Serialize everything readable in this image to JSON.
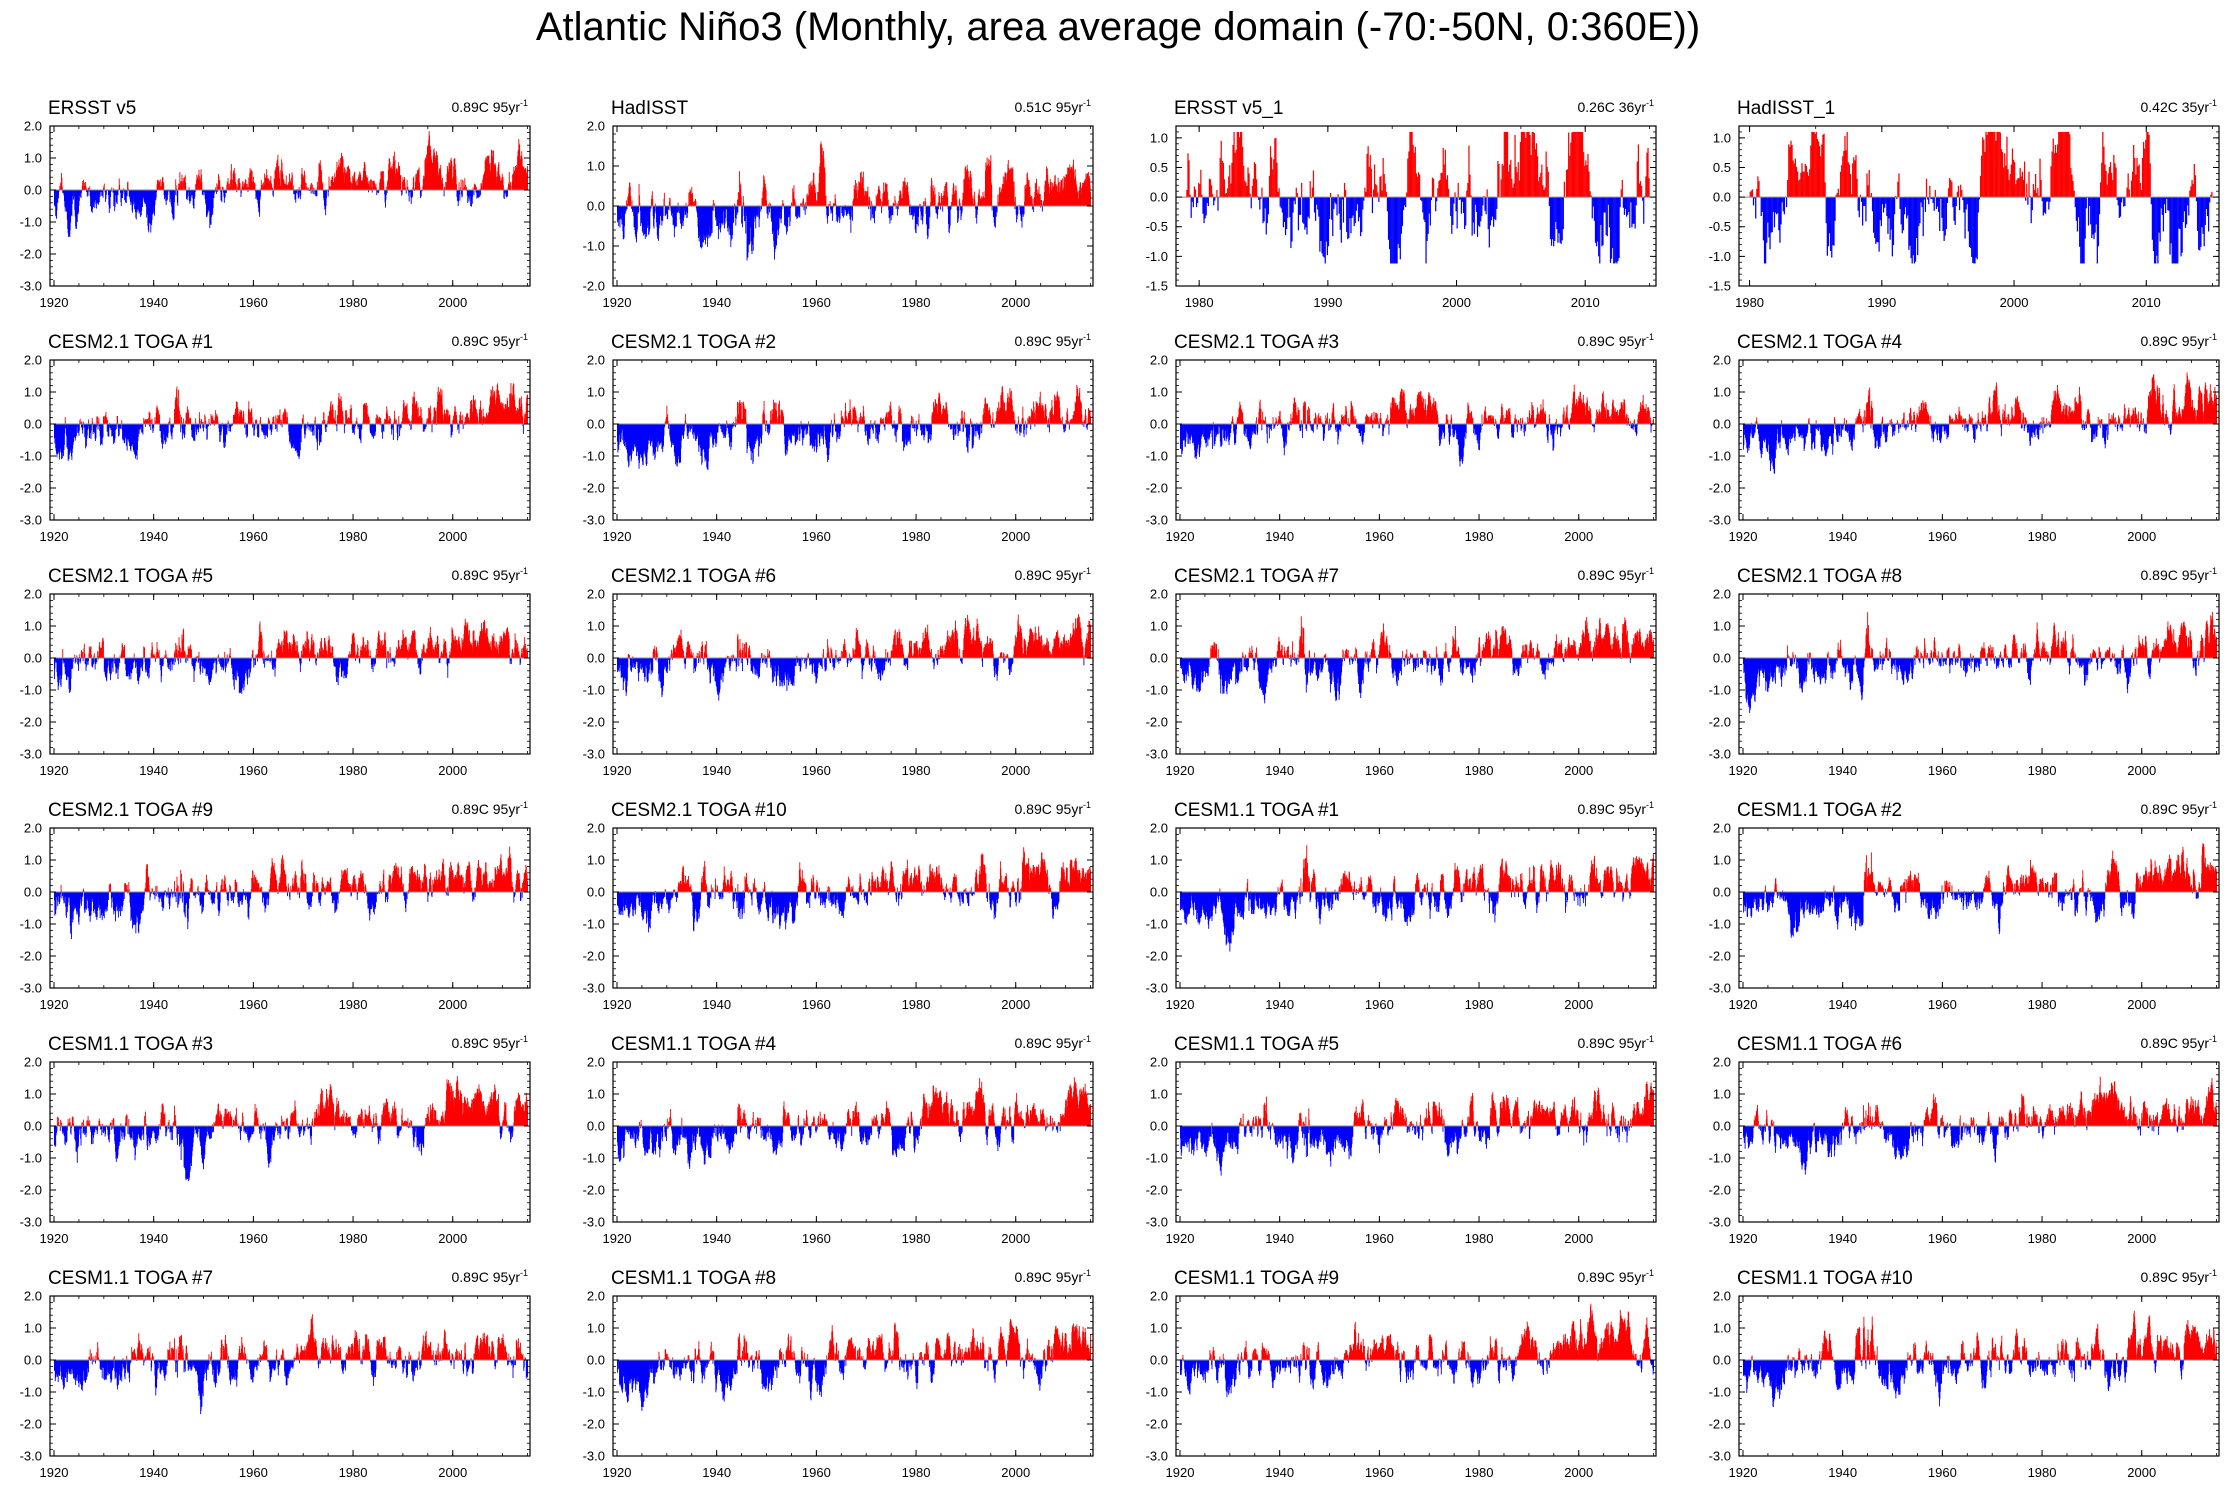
{
  "title": "Atlantic Niño3 (Monthly, area average domain (-70:-50N, 0:360E))",
  "colors": {
    "positive": "#ff0000",
    "negative": "#0000ff",
    "axis": "#000000",
    "zero_line": "#888888"
  },
  "chart_data": [
    {
      "type": "bar",
      "title": "ERSST v5",
      "trend": "0.89C 95yr",
      "trend_sup": "-1",
      "x_range": [
        1920,
        2014
      ],
      "ylim": [
        -3,
        2
      ],
      "yticks": [
        "2.0",
        "1.0",
        "0.0",
        "-1.0",
        "-2.0",
        "-3.0"
      ],
      "xticks": [
        "1920",
        "1940",
        "1960",
        "1980",
        "2000"
      ],
      "series_note": "monthly anomaly; red above 0, blue below 0"
    },
    {
      "type": "bar",
      "title": "HadISST",
      "trend": "0.51C 95yr",
      "trend_sup": "-1",
      "x_range": [
        1920,
        2014
      ],
      "ylim": [
        -2,
        2
      ],
      "yticks": [
        "2.0",
        "1.0",
        "0.0",
        "-1.0",
        "-2.0"
      ],
      "xticks": [
        "1920",
        "1940",
        "1960",
        "1980",
        "2000"
      ]
    },
    {
      "type": "bar",
      "title": "ERSST v5_1",
      "trend": "0.26C 36yr",
      "trend_sup": "-1",
      "x_range": [
        1979,
        2014
      ],
      "ylim": [
        -1.5,
        1.2
      ],
      "yticks": [
        "1.0",
        "0.5",
        "0.0",
        "-0.5",
        "-1.0",
        "-1.5"
      ],
      "xticks": [
        "1980",
        "1990",
        "2000",
        "2010"
      ]
    },
    {
      "type": "bar",
      "title": "HadISST_1",
      "trend": "0.42C 35yr",
      "trend_sup": "-1",
      "x_range": [
        1980,
        2014
      ],
      "ylim": [
        -1.5,
        1.2
      ],
      "yticks": [
        "1.0",
        "0.5",
        "0.0",
        "-0.5",
        "-1.0",
        "-1.5"
      ],
      "xticks": [
        "1980",
        "1990",
        "2000",
        "2010"
      ]
    },
    {
      "type": "bar",
      "title": "CESM2.1 TOGA #1",
      "trend": "0.89C 95yr",
      "trend_sup": "-1",
      "x_range": [
        1920,
        2014
      ],
      "ylim": [
        -3,
        2
      ],
      "yticks": [
        "2.0",
        "1.0",
        "0.0",
        "-1.0",
        "-2.0",
        "-3.0"
      ],
      "xticks": [
        "1920",
        "1940",
        "1960",
        "1980",
        "2000"
      ]
    },
    {
      "type": "bar",
      "title": "CESM2.1 TOGA #2",
      "trend": "0.89C 95yr",
      "trend_sup": "-1",
      "x_range": [
        1920,
        2014
      ],
      "ylim": [
        -3,
        2
      ],
      "yticks": [
        "2.0",
        "1.0",
        "0.0",
        "-1.0",
        "-2.0",
        "-3.0"
      ],
      "xticks": [
        "1920",
        "1940",
        "1960",
        "1980",
        "2000"
      ]
    },
    {
      "type": "bar",
      "title": "CESM2.1 TOGA #3",
      "trend": "0.89C 95yr",
      "trend_sup": "-1",
      "x_range": [
        1920,
        2014
      ],
      "ylim": [
        -3,
        2
      ],
      "yticks": [
        "2.0",
        "1.0",
        "0.0",
        "-1.0",
        "-2.0",
        "-3.0"
      ],
      "xticks": [
        "1920",
        "1940",
        "1960",
        "1980",
        "2000"
      ]
    },
    {
      "type": "bar",
      "title": "CESM2.1 TOGA #4",
      "trend": "0.89C 95yr",
      "trend_sup": "-1",
      "x_range": [
        1920,
        2014
      ],
      "ylim": [
        -3,
        2
      ],
      "yticks": [
        "2.0",
        "1.0",
        "0.0",
        "-1.0",
        "-2.0",
        "-3.0"
      ],
      "xticks": [
        "1920",
        "1940",
        "1960",
        "1980",
        "2000"
      ]
    },
    {
      "type": "bar",
      "title": "CESM2.1 TOGA #5",
      "trend": "0.89C 95yr",
      "trend_sup": "-1",
      "x_range": [
        1920,
        2014
      ],
      "ylim": [
        -3,
        2
      ],
      "yticks": [
        "2.0",
        "1.0",
        "0.0",
        "-1.0",
        "-2.0",
        "-3.0"
      ],
      "xticks": [
        "1920",
        "1940",
        "1960",
        "1980",
        "2000"
      ]
    },
    {
      "type": "bar",
      "title": "CESM2.1 TOGA #6",
      "trend": "0.89C 95yr",
      "trend_sup": "-1",
      "x_range": [
        1920,
        2014
      ],
      "ylim": [
        -3,
        2
      ],
      "yticks": [
        "2.0",
        "1.0",
        "0.0",
        "-1.0",
        "-2.0",
        "-3.0"
      ],
      "xticks": [
        "1920",
        "1940",
        "1960",
        "1980",
        "2000"
      ]
    },
    {
      "type": "bar",
      "title": "CESM2.1 TOGA #7",
      "trend": "0.89C 95yr",
      "trend_sup": "-1",
      "x_range": [
        1920,
        2014
      ],
      "ylim": [
        -3,
        2
      ],
      "yticks": [
        "2.0",
        "1.0",
        "0.0",
        "-1.0",
        "-2.0",
        "-3.0"
      ],
      "xticks": [
        "1920",
        "1940",
        "1960",
        "1980",
        "2000"
      ]
    },
    {
      "type": "bar",
      "title": "CESM2.1 TOGA #8",
      "trend": "0.89C 95yr",
      "trend_sup": "-1",
      "x_range": [
        1920,
        2014
      ],
      "ylim": [
        -3,
        2
      ],
      "yticks": [
        "2.0",
        "1.0",
        "0.0",
        "-1.0",
        "-2.0",
        "-3.0"
      ],
      "xticks": [
        "1920",
        "1940",
        "1960",
        "1980",
        "2000"
      ]
    },
    {
      "type": "bar",
      "title": "CESM2.1 TOGA #9",
      "trend": "0.89C 95yr",
      "trend_sup": "-1",
      "x_range": [
        1920,
        2014
      ],
      "ylim": [
        -3,
        2
      ],
      "yticks": [
        "2.0",
        "1.0",
        "0.0",
        "-1.0",
        "-2.0",
        "-3.0"
      ],
      "xticks": [
        "1920",
        "1940",
        "1960",
        "1980",
        "2000"
      ]
    },
    {
      "type": "bar",
      "title": "CESM2.1 TOGA #10",
      "trend": "0.89C 95yr",
      "trend_sup": "-1",
      "x_range": [
        1920,
        2014
      ],
      "ylim": [
        -3,
        2
      ],
      "yticks": [
        "2.0",
        "1.0",
        "0.0",
        "-1.0",
        "-2.0",
        "-3.0"
      ],
      "xticks": [
        "1920",
        "1940",
        "1960",
        "1980",
        "2000"
      ]
    },
    {
      "type": "bar",
      "title": "CESM1.1 TOGA #1",
      "trend": "0.89C 95yr",
      "trend_sup": "-1",
      "x_range": [
        1920,
        2014
      ],
      "ylim": [
        -3,
        2
      ],
      "yticks": [
        "2.0",
        "1.0",
        "0.0",
        "-1.0",
        "-2.0",
        "-3.0"
      ],
      "xticks": [
        "1920",
        "1940",
        "1960",
        "1980",
        "2000"
      ]
    },
    {
      "type": "bar",
      "title": "CESM1.1 TOGA #2",
      "trend": "0.89C 95yr",
      "trend_sup": "-1",
      "x_range": [
        1920,
        2014
      ],
      "ylim": [
        -3,
        2
      ],
      "yticks": [
        "2.0",
        "1.0",
        "0.0",
        "-1.0",
        "-2.0",
        "-3.0"
      ],
      "xticks": [
        "1920",
        "1940",
        "1960",
        "1980",
        "2000"
      ]
    },
    {
      "type": "bar",
      "title": "CESM1.1 TOGA #3",
      "trend": "0.89C 95yr",
      "trend_sup": "-1",
      "x_range": [
        1920,
        2014
      ],
      "ylim": [
        -3,
        2
      ],
      "yticks": [
        "2.0",
        "1.0",
        "0.0",
        "-1.0",
        "-2.0",
        "-3.0"
      ],
      "xticks": [
        "1920",
        "1940",
        "1960",
        "1980",
        "2000"
      ]
    },
    {
      "type": "bar",
      "title": "CESM1.1 TOGA #4",
      "trend": "0.89C 95yr",
      "trend_sup": "-1",
      "x_range": [
        1920,
        2014
      ],
      "ylim": [
        -3,
        2
      ],
      "yticks": [
        "2.0",
        "1.0",
        "0.0",
        "-1.0",
        "-2.0",
        "-3.0"
      ],
      "xticks": [
        "1920",
        "1940",
        "1960",
        "1980",
        "2000"
      ]
    },
    {
      "type": "bar",
      "title": "CESM1.1 TOGA #5",
      "trend": "0.89C 95yr",
      "trend_sup": "-1",
      "x_range": [
        1920,
        2014
      ],
      "ylim": [
        -3,
        2
      ],
      "yticks": [
        "2.0",
        "1.0",
        "0.0",
        "-1.0",
        "-2.0",
        "-3.0"
      ],
      "xticks": [
        "1920",
        "1940",
        "1960",
        "1980",
        "2000"
      ]
    },
    {
      "type": "bar",
      "title": "CESM1.1 TOGA #6",
      "trend": "0.89C 95yr",
      "trend_sup": "-1",
      "x_range": [
        1920,
        2014
      ],
      "ylim": [
        -3,
        2
      ],
      "yticks": [
        "2.0",
        "1.0",
        "0.0",
        "-1.0",
        "-2.0",
        "-3.0"
      ],
      "xticks": [
        "1920",
        "1940",
        "1960",
        "1980",
        "2000"
      ]
    },
    {
      "type": "bar",
      "title": "CESM1.1 TOGA #7",
      "trend": "0.89C 95yr",
      "trend_sup": "-1",
      "x_range": [
        1920,
        2014
      ],
      "ylim": [
        -3,
        2
      ],
      "yticks": [
        "2.0",
        "1.0",
        "0.0",
        "-1.0",
        "-2.0",
        "-3.0"
      ],
      "xticks": [
        "1920",
        "1940",
        "1960",
        "1980",
        "2000"
      ]
    },
    {
      "type": "bar",
      "title": "CESM1.1 TOGA #8",
      "trend": "0.89C 95yr",
      "trend_sup": "-1",
      "x_range": [
        1920,
        2014
      ],
      "ylim": [
        -3,
        2
      ],
      "yticks": [
        "2.0",
        "1.0",
        "0.0",
        "-1.0",
        "-2.0",
        "-3.0"
      ],
      "xticks": [
        "1920",
        "1940",
        "1960",
        "1980",
        "2000"
      ]
    },
    {
      "type": "bar",
      "title": "CESM1.1 TOGA #9",
      "trend": "0.89C 95yr",
      "trend_sup": "-1",
      "x_range": [
        1920,
        2014
      ],
      "ylim": [
        -3,
        2
      ],
      "yticks": [
        "2.0",
        "1.0",
        "0.0",
        "-1.0",
        "-2.0",
        "-3.0"
      ],
      "xticks": [
        "1920",
        "1940",
        "1960",
        "1980",
        "2000"
      ]
    },
    {
      "type": "bar",
      "title": "CESM1.1 TOGA #10",
      "trend": "0.89C 95yr",
      "trend_sup": "-1",
      "x_range": [
        1920,
        2014
      ],
      "ylim": [
        -3,
        2
      ],
      "yticks": [
        "2.0",
        "1.0",
        "0.0",
        "-1.0",
        "-2.0",
        "-3.0"
      ],
      "xticks": [
        "1920",
        "1940",
        "1960",
        "1980",
        "2000"
      ]
    }
  ]
}
